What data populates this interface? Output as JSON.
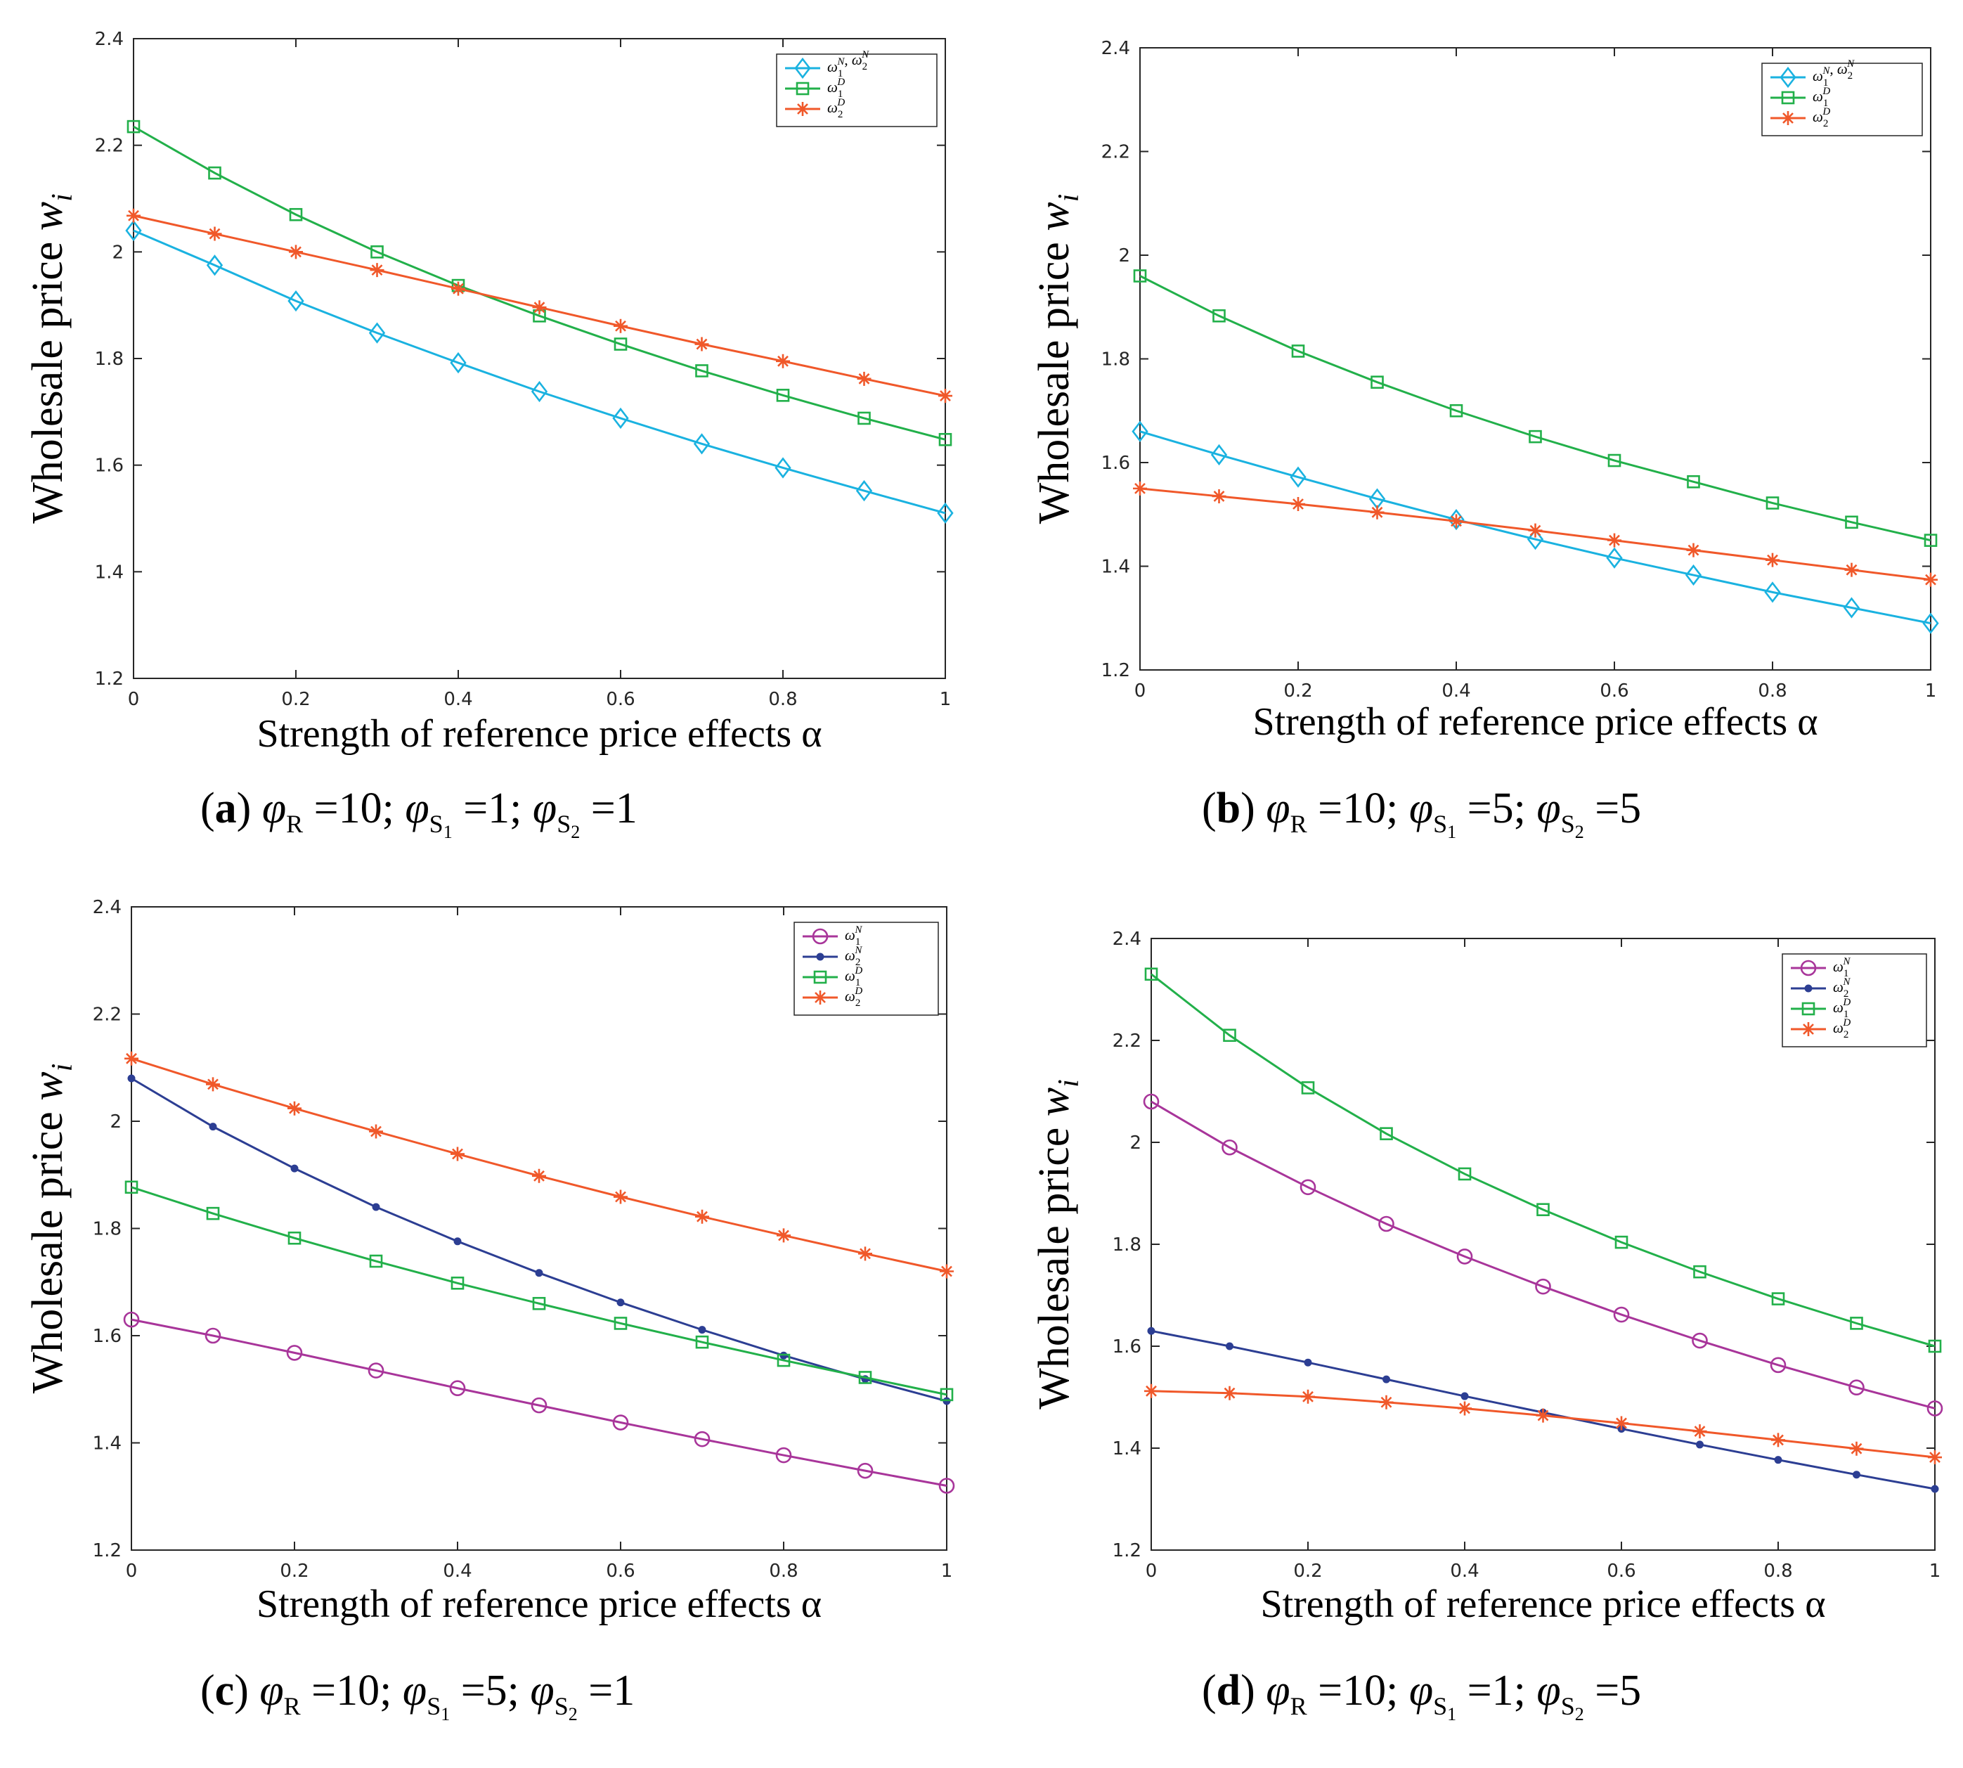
{
  "colors": {
    "cyan": "#1ab2e0",
    "green": "#22b04a",
    "orange": "#f0582a",
    "magenta": "#a8359a",
    "navy": "#2c3e93"
  },
  "chart_data": [
    {
      "type": "line",
      "panel": "a",
      "caption": {
        "label": "(a)",
        "phi_r": "10;",
        "phi_s1": "1;",
        "phi_s2": "1"
      },
      "xlabel": "Strength of reference price effects α",
      "ylabel": "Wholesale price",
      "ylabel_var": "w",
      "ylabel_sub": "i",
      "xlim": [
        0,
        1
      ],
      "ylim": [
        1.2,
        2.4
      ],
      "xticks": [
        0,
        0.2,
        0.4,
        0.6,
        0.8,
        1
      ],
      "yticks": [
        1.2,
        1.4,
        1.6,
        1.8,
        2,
        2.2,
        2.4
      ],
      "x": [
        0,
        0.1,
        0.2,
        0.3,
        0.4,
        0.5,
        0.6,
        0.7,
        0.8,
        0.9,
        1
      ],
      "legend_position": "top-right",
      "series": [
        {
          "name": "ω1N, ω2N",
          "legend": [
            [
              "ω",
              "1",
              "N"
            ],
            [
              "ω",
              "2",
              "N"
            ]
          ],
          "color": "#1ab2e0",
          "marker": "diamond",
          "values": [
            2.04,
            1.975,
            1.908,
            1.848,
            1.792,
            1.738,
            1.688,
            1.64,
            1.595,
            1.552,
            1.51
          ]
        },
        {
          "name": "ω1D",
          "legend": [
            [
              "ω",
              "1",
              "D"
            ]
          ],
          "color": "#22b04a",
          "marker": "square",
          "values": [
            2.235,
            2.148,
            2.07,
            2.0,
            1.937,
            1.88,
            1.827,
            1.777,
            1.731,
            1.688,
            1.648
          ]
        },
        {
          "name": "ω2D",
          "legend": [
            [
              "ω",
              "2",
              "D"
            ]
          ],
          "color": "#f0582a",
          "marker": "star",
          "values": [
            2.068,
            2.034,
            2.0,
            1.966,
            1.931,
            1.896,
            1.861,
            1.827,
            1.795,
            1.762,
            1.73
          ]
        }
      ]
    },
    {
      "type": "line",
      "panel": "b",
      "caption": {
        "label": "(b)",
        "phi_r": "10;",
        "phi_s1": "5;",
        "phi_s2": "5"
      },
      "xlabel": "Strength of reference price effects α",
      "ylabel": "Wholesale price",
      "ylabel_var": "w",
      "ylabel_sub": "i",
      "xlim": [
        0,
        1
      ],
      "ylim": [
        1.2,
        2.4
      ],
      "xticks": [
        0,
        0.2,
        0.4,
        0.6,
        0.8,
        1
      ],
      "yticks": [
        1.2,
        1.4,
        1.6,
        1.8,
        2,
        2.2,
        2.4
      ],
      "x": [
        0,
        0.1,
        0.2,
        0.3,
        0.4,
        0.5,
        0.6,
        0.7,
        0.8,
        0.9,
        1
      ],
      "legend_position": "top-right",
      "series": [
        {
          "name": "ω1N, ω2N",
          "legend": [
            [
              "ω",
              "1",
              "N"
            ],
            [
              "ω",
              "2",
              "N"
            ]
          ],
          "color": "#1ab2e0",
          "marker": "diamond",
          "values": [
            1.66,
            1.615,
            1.572,
            1.53,
            1.49,
            1.452,
            1.416,
            1.383,
            1.35,
            1.32,
            1.29
          ]
        },
        {
          "name": "ω1D",
          "legend": [
            [
              "ω",
              "1",
              "D"
            ]
          ],
          "color": "#22b04a",
          "marker": "square",
          "values": [
            1.96,
            1.883,
            1.815,
            1.755,
            1.7,
            1.65,
            1.604,
            1.563,
            1.522,
            1.485,
            1.45
          ]
        },
        {
          "name": "ω2D",
          "legend": [
            [
              "ω",
              "2",
              "D"
            ]
          ],
          "color": "#f0582a",
          "marker": "star",
          "values": [
            1.55,
            1.535,
            1.52,
            1.504,
            1.487,
            1.469,
            1.45,
            1.431,
            1.412,
            1.393,
            1.374
          ]
        }
      ]
    },
    {
      "type": "line",
      "panel": "c",
      "caption": {
        "label": "(c)",
        "phi_r": "10;",
        "phi_s1": "5;",
        "phi_s2": "1"
      },
      "xlabel": "Strength of reference price effects α",
      "ylabel": "Wholesale price",
      "ylabel_var": "w",
      "ylabel_sub": "i",
      "xlim": [
        0,
        1
      ],
      "ylim": [
        1.2,
        2.4
      ],
      "xticks": [
        0,
        0.2,
        0.4,
        0.6,
        0.8,
        1
      ],
      "yticks": [
        1.2,
        1.4,
        1.6,
        1.8,
        2,
        2.2,
        2.4
      ],
      "x": [
        0,
        0.1,
        0.2,
        0.3,
        0.4,
        0.5,
        0.6,
        0.7,
        0.8,
        0.9,
        1
      ],
      "legend_position": "top-right",
      "series": [
        {
          "name": "ω1N",
          "legend": [
            [
              "ω",
              "1",
              "N"
            ]
          ],
          "color": "#a8359a",
          "marker": "circle",
          "values": [
            1.63,
            1.6,
            1.568,
            1.535,
            1.502,
            1.47,
            1.438,
            1.407,
            1.377,
            1.348,
            1.32
          ]
        },
        {
          "name": "ω2N",
          "legend": [
            [
              "ω",
              "2",
              "N"
            ]
          ],
          "color": "#2c3e93",
          "marker": "dot",
          "values": [
            2.08,
            1.99,
            1.912,
            1.84,
            1.776,
            1.717,
            1.662,
            1.611,
            1.563,
            1.519,
            1.478
          ]
        },
        {
          "name": "ω1D",
          "legend": [
            [
              "ω",
              "1",
              "D"
            ]
          ],
          "color": "#22b04a",
          "marker": "square",
          "values": [
            1.877,
            1.828,
            1.782,
            1.739,
            1.698,
            1.66,
            1.623,
            1.588,
            1.554,
            1.522,
            1.49
          ]
        },
        {
          "name": "ω2D",
          "legend": [
            [
              "ω",
              "2",
              "D"
            ]
          ],
          "color": "#f0582a",
          "marker": "star",
          "values": [
            2.117,
            2.069,
            2.024,
            1.981,
            1.939,
            1.898,
            1.859,
            1.822,
            1.787,
            1.753,
            1.72
          ]
        }
      ]
    },
    {
      "type": "line",
      "panel": "d",
      "caption": {
        "label": "(d)",
        "phi_r": "10;",
        "phi_s1": "1;",
        "phi_s2": "5"
      },
      "xlabel": "Strength of reference price effects α",
      "ylabel": "Wholesale price",
      "ylabel_var": "w",
      "ylabel_sub": "i",
      "xlim": [
        0,
        1
      ],
      "ylim": [
        1.2,
        2.4
      ],
      "xticks": [
        0,
        0.2,
        0.4,
        0.6,
        0.8,
        1
      ],
      "yticks": [
        1.2,
        1.4,
        1.6,
        1.8,
        2,
        2.2,
        2.4
      ],
      "x": [
        0,
        0.1,
        0.2,
        0.3,
        0.4,
        0.5,
        0.6,
        0.7,
        0.8,
        0.9,
        1
      ],
      "legend_position": "top-right",
      "series": [
        {
          "name": "ω1N",
          "legend": [
            [
              "ω",
              "1",
              "N"
            ]
          ],
          "color": "#a8359a",
          "marker": "circle",
          "values": [
            2.08,
            1.99,
            1.912,
            1.84,
            1.776,
            1.717,
            1.662,
            1.611,
            1.563,
            1.519,
            1.478
          ]
        },
        {
          "name": "ω2N",
          "legend": [
            [
              "ω",
              "2",
              "N"
            ]
          ],
          "color": "#2c3e93",
          "marker": "dot",
          "values": [
            1.63,
            1.6,
            1.568,
            1.535,
            1.502,
            1.47,
            1.438,
            1.407,
            1.377,
            1.348,
            1.32
          ]
        },
        {
          "name": "ω1D",
          "legend": [
            [
              "ω",
              "1",
              "D"
            ]
          ],
          "color": "#22b04a",
          "marker": "square",
          "values": [
            2.33,
            2.21,
            2.107,
            2.017,
            1.938,
            1.868,
            1.804,
            1.746,
            1.693,
            1.645,
            1.6
          ]
        },
        {
          "name": "ω2D",
          "legend": [
            [
              "ω",
              "2",
              "D"
            ]
          ],
          "color": "#f0582a",
          "marker": "star",
          "values": [
            1.512,
            1.508,
            1.501,
            1.49,
            1.478,
            1.464,
            1.449,
            1.433,
            1.416,
            1.399,
            1.382
          ]
        }
      ]
    }
  ]
}
